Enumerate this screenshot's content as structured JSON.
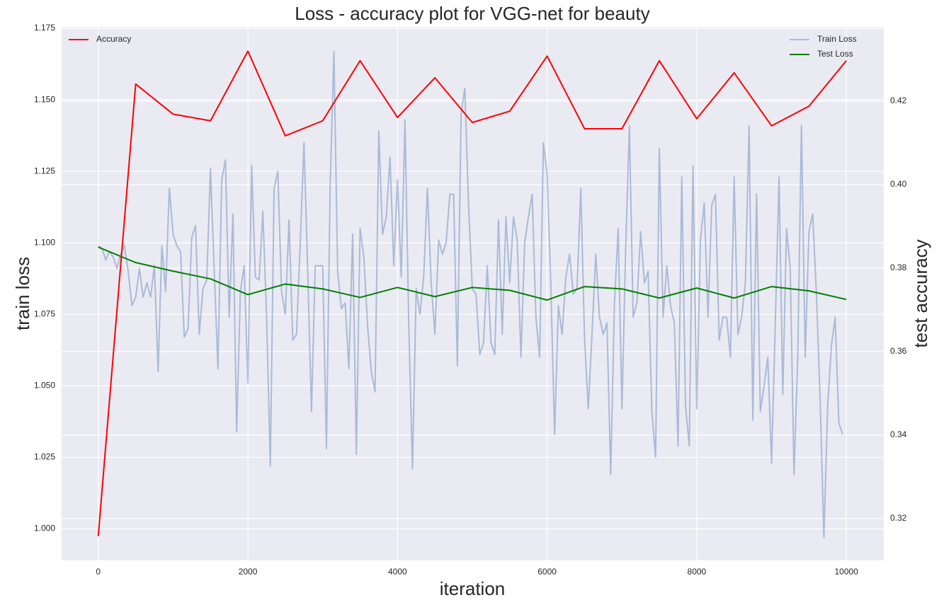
{
  "chart_data": {
    "type": "line",
    "title": "Loss - accuracy plot for VGG-net for beauty",
    "xlabel": "iteration",
    "ylabel": "train loss",
    "y2label": "test accuracy",
    "xlim": [
      -490,
      10500
    ],
    "ylim": [
      0.989,
      1.1755
    ],
    "y2lim": [
      0.31,
      0.4378
    ],
    "xticks": [
      0,
      2000,
      4000,
      6000,
      8000,
      10000
    ],
    "yticks": [
      {
        "value": 1.0,
        "label": "1.000"
      },
      1.025,
      {
        "value": 1.05,
        "label": "1.050"
      },
      1.075,
      {
        "value": 1.1,
        "label": "1.100"
      },
      1.125,
      {
        "value": 1.15,
        "label": "1.150"
      },
      1.175
    ],
    "y2ticks": [
      0.32,
      0.34,
      0.36,
      0.38,
      {
        "value": 0.4,
        "label": "0.40"
      },
      0.42
    ],
    "grid": true,
    "legend": {
      "y": "upper right",
      "y2": "upper left"
    },
    "series": [
      {
        "name": "Train Loss",
        "color": "#4c72b0",
        "alpha": 0.4,
        "axis": "y",
        "x": [
          0,
          50,
          100,
          150,
          200,
          250,
          300,
          350,
          400,
          450,
          500,
          550,
          600,
          650,
          700,
          750,
          800,
          850,
          900,
          950,
          1000,
          1050,
          1100,
          1150,
          1200,
          1250,
          1300,
          1350,
          1400,
          1450,
          1500,
          1550,
          1600,
          1650,
          1700,
          1750,
          1800,
          1850,
          1900,
          1950,
          2000,
          2050,
          2100,
          2150,
          2200,
          2250,
          2300,
          2350,
          2400,
          2450,
          2500,
          2550,
          2600,
          2650,
          2700,
          2750,
          2800,
          2850,
          2900,
          2950,
          3000,
          3050,
          3100,
          3150,
          3200,
          3250,
          3300,
          3350,
          3400,
          3450,
          3500,
          3550,
          3600,
          3650,
          3700,
          3750,
          3800,
          3850,
          3900,
          3950,
          4000,
          4050,
          4100,
          4150,
          4200,
          4250,
          4300,
          4350,
          4400,
          4450,
          4500,
          4550,
          4600,
          4650,
          4700,
          4750,
          4800,
          4850,
          4900,
          4950,
          5000,
          5050,
          5100,
          5150,
          5200,
          5250,
          5300,
          5350,
          5400,
          5450,
          5500,
          5550,
          5600,
          5650,
          5700,
          5750,
          5800,
          5850,
          5900,
          5950,
          6000,
          6050,
          6100,
          6150,
          6200,
          6250,
          6300,
          6350,
          6400,
          6450,
          6500,
          6550,
          6600,
          6650,
          6700,
          6750,
          6800,
          6850,
          6900,
          6950,
          7000,
          7050,
          7100,
          7150,
          7200,
          7250,
          7300,
          7350,
          7400,
          7450,
          7500,
          7550,
          7600,
          7650,
          7700,
          7750,
          7800,
          7850,
          7900,
          7950,
          8000,
          8050,
          8100,
          8150,
          8200,
          8250,
          8300,
          8350,
          8400,
          8450,
          8500,
          8550,
          8600,
          8650,
          8700,
          8750,
          8800,
          8850,
          8900,
          8950,
          9000,
          9050,
          9100,
          9150,
          9200,
          9250,
          9300,
          9350,
          9400,
          9450,
          9500,
          9550,
          9600,
          9650,
          9700,
          9750,
          9800,
          9850,
          9900,
          9950
        ],
        "values": [
          1.099,
          1.098,
          1.094,
          1.097,
          1.095,
          1.091,
          1.096,
          1.099,
          1.09,
          1.078,
          1.081,
          1.091,
          1.081,
          1.086,
          1.081,
          1.092,
          1.055,
          1.099,
          1.083,
          1.119,
          1.103,
          1.099,
          1.097,
          1.067,
          1.07,
          1.102,
          1.106,
          1.068,
          1.084,
          1.087,
          1.126,
          1.09,
          1.056,
          1.122,
          1.129,
          1.074,
          1.11,
          1.034,
          1.083,
          1.092,
          1.051,
          1.127,
          1.088,
          1.087,
          1.111,
          1.074,
          1.022,
          1.119,
          1.125,
          1.083,
          1.075,
          1.108,
          1.066,
          1.068,
          1.1,
          1.135,
          1.09,
          1.041,
          1.092,
          1.092,
          1.092,
          1.028,
          1.12,
          1.167,
          1.09,
          1.077,
          1.079,
          1.056,
          1.103,
          1.026,
          1.105,
          1.095,
          1.071,
          1.055,
          1.048,
          1.139,
          1.103,
          1.109,
          1.13,
          1.092,
          1.122,
          1.088,
          1.143,
          1.072,
          1.021,
          1.084,
          1.075,
          1.088,
          1.119,
          1.086,
          1.068,
          1.101,
          1.096,
          1.1,
          1.117,
          1.117,
          1.057,
          1.145,
          1.154,
          1.113,
          1.084,
          1.082,
          1.061,
          1.065,
          1.092,
          1.065,
          1.061,
          1.108,
          1.068,
          1.109,
          1.086,
          1.109,
          1.101,
          1.06,
          1.1,
          1.109,
          1.117,
          1.074,
          1.06,
          1.135,
          1.124,
          1.085,
          1.033,
          1.078,
          1.068,
          1.088,
          1.096,
          1.082,
          1.084,
          1.119,
          1.067,
          1.042,
          1.068,
          1.096,
          1.074,
          1.068,
          1.072,
          1.019,
          1.079,
          1.105,
          1.042,
          1.098,
          1.141,
          1.074,
          1.079,
          1.104,
          1.086,
          1.09,
          1.041,
          1.025,
          1.133,
          1.074,
          1.092,
          1.078,
          1.072,
          1.029,
          1.123,
          1.043,
          1.029,
          1.127,
          1.042,
          1.101,
          1.114,
          1.074,
          1.113,
          1.117,
          1.066,
          1.074,
          1.074,
          1.06,
          1.123,
          1.068,
          1.074,
          1.086,
          1.141,
          1.038,
          1.117,
          1.041,
          1.05,
          1.06,
          1.023,
          1.072,
          1.123,
          1.047,
          1.105,
          1.091,
          1.019,
          1.06,
          1.141,
          1.06,
          1.104,
          1.11,
          1.082,
          1.045,
          0.997,
          1.043,
          1.064,
          1.074,
          1.037,
          1.033
        ]
      },
      {
        "name": "Test Loss",
        "color": "#008000",
        "axis": "y",
        "x": [
          0,
          500,
          1000,
          1500,
          2000,
          2500,
          3000,
          3500,
          4000,
          4500,
          5000,
          5500,
          6000,
          6500,
          7000,
          7500,
          8000,
          8500,
          9000,
          9500,
          10000
        ],
        "values": [
          1.0985,
          1.0931,
          1.0901,
          1.0874,
          1.0819,
          1.0856,
          1.0839,
          1.0809,
          1.0844,
          1.0812,
          1.0844,
          1.0834,
          1.08,
          1.0847,
          1.0839,
          1.0807,
          1.0842,
          1.0807,
          1.0847,
          1.0832,
          1.0802
        ]
      },
      {
        "name": "Accuracy",
        "color": "#ff0000",
        "axis": "y2",
        "x": [
          0,
          500,
          1000,
          1500,
          2000,
          2500,
          3000,
          3500,
          4000,
          4500,
          5000,
          5500,
          6000,
          6500,
          7000,
          7500,
          8000,
          8500,
          9000,
          9500,
          10000
        ],
        "values": [
          0.3158,
          0.4241,
          0.4169,
          0.4153,
          0.432,
          0.4117,
          0.4153,
          0.4297,
          0.4161,
          0.4256,
          0.4149,
          0.4176,
          0.4308,
          0.4134,
          0.4134,
          0.4297,
          0.4158,
          0.4268,
          0.4141,
          0.4188,
          0.4297
        ]
      }
    ]
  }
}
